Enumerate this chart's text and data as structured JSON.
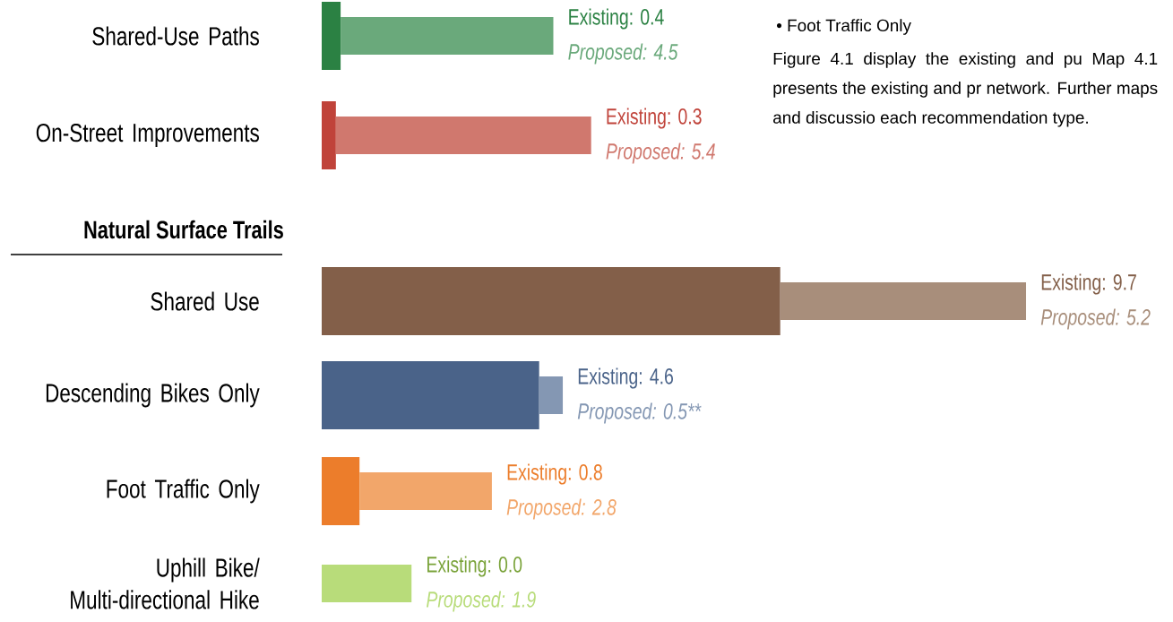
{
  "chart_data": {
    "type": "bar",
    "orientation": "horizontal",
    "stacked": true,
    "categories": [
      "Shared-Use Paths",
      "On-Street Improvements",
      "Shared Use",
      "Descending Bikes Only",
      "Foot Traffic Only",
      "Uphill Bike/ Multi-directional Hike"
    ],
    "series": [
      {
        "colors": [
          "#2b8143",
          "#c0433a",
          "#835f49",
          "#4a6389",
          "#ec7d2b",
          "#7aa33a"
        ],
        "values": [
          0.4,
          0.3,
          9.7,
          4.6,
          0.8,
          0.0
        ]
      },
      {
        "colors": [
          "#6aa97b",
          "#d0786e",
          "#a88e7b",
          "#8497b3",
          "#f2a66a",
          "#b8dc7a"
        ],
        "values": [
          4.5,
          5.4,
          5.2,
          0.5,
          2.8,
          1.9
        ],
        "value_labels": [
          "Proposed: 4.5",
          "Proposed: 5.4",
          "Proposed: 5.2",
          "Proposed: 0.5**",
          "Proposed: 2.8",
          "Proposed: 1.9"
        ]
      }
    ],
    "annotations": [
      "Natural Surface Trails",
      "• Foot Traffic Only",
      "Figure 4.1 display the existing and pu Map 4.1 presents the existing and pr network. Further maps and discussio each recommendation type.",
      {
        "text": "Existing: 0.4",
        "x": 4.9,
        "y": "Shared-Use Paths"
      },
      {
        "text": "Existing: 0.3",
        "x": 5.7,
        "y": "On-Street Improvements"
      },
      {
        "text": "Existing: 9.7",
        "x": 14.9,
        "y": "Shared Use"
      },
      {
        "text": "Existing: 4.6",
        "x": 5.1,
        "y": "Descending Bikes Only"
      },
      {
        "text": "Existing: 0.8",
        "x": 3.6,
        "y": "Foot Traffic Only"
      },
      {
        "text": "Existing: 0.0",
        "x": 1.9,
        "y": "Uphill Bike/ Multi-directional Hike"
      }
    ]
  }
}
